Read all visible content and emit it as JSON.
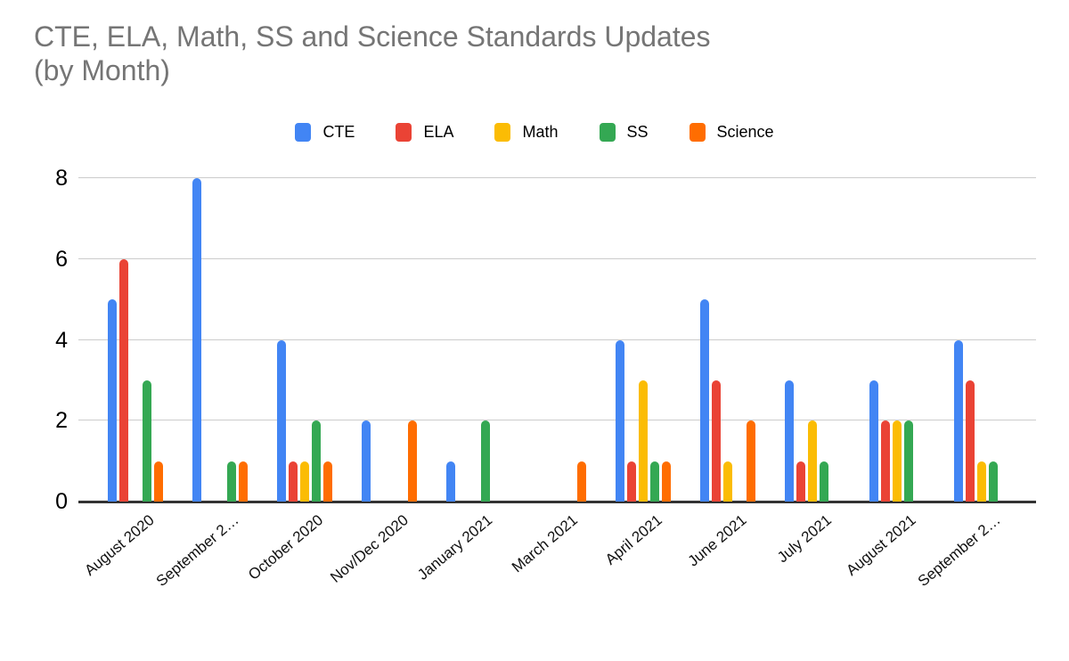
{
  "title": {
    "line1": "CTE, ELA, Math, SS and Science Standards Updates",
    "line2": "(by Month)"
  },
  "chart_data": {
    "type": "bar",
    "title": "CTE, ELA, Math, SS and Science Standards Updates (by Month)",
    "xlabel": "",
    "ylabel": "",
    "ylim": [
      0,
      8
    ],
    "yticks": [
      0,
      2,
      4,
      6,
      8
    ],
    "grid": true,
    "legend_position": "top",
    "categories": [
      "August 2020",
      "September 2…",
      "October 2020",
      "Nov/Dec 2020",
      "January 2021",
      "March 2021",
      "April 2021",
      "June 2021",
      "July 2021",
      "August 2021",
      "September 2…"
    ],
    "series": [
      {
        "name": "CTE",
        "color": "#4285F4",
        "values": [
          5,
          8,
          4,
          2,
          1,
          0,
          4,
          5,
          3,
          3,
          4
        ]
      },
      {
        "name": "ELA",
        "color": "#EA4335",
        "values": [
          6,
          0,
          1,
          0,
          0,
          0,
          1,
          3,
          1,
          2,
          3
        ]
      },
      {
        "name": "Math",
        "color": "#FBBC04",
        "values": [
          0,
          0,
          1,
          0,
          0,
          0,
          3,
          1,
          2,
          2,
          1
        ]
      },
      {
        "name": "SS",
        "color": "#34A853",
        "values": [
          3,
          1,
          2,
          0,
          2,
          0,
          1,
          0,
          1,
          2,
          1
        ]
      },
      {
        "name": "Science",
        "color": "#FF6D01",
        "values": [
          1,
          1,
          1,
          2,
          0,
          1,
          1,
          2,
          0,
          0,
          0
        ]
      }
    ]
  },
  "colors": {
    "title_text": "#757575",
    "gridline": "#cccccc",
    "axis_line": "#333333",
    "tick_label": "#000000"
  }
}
